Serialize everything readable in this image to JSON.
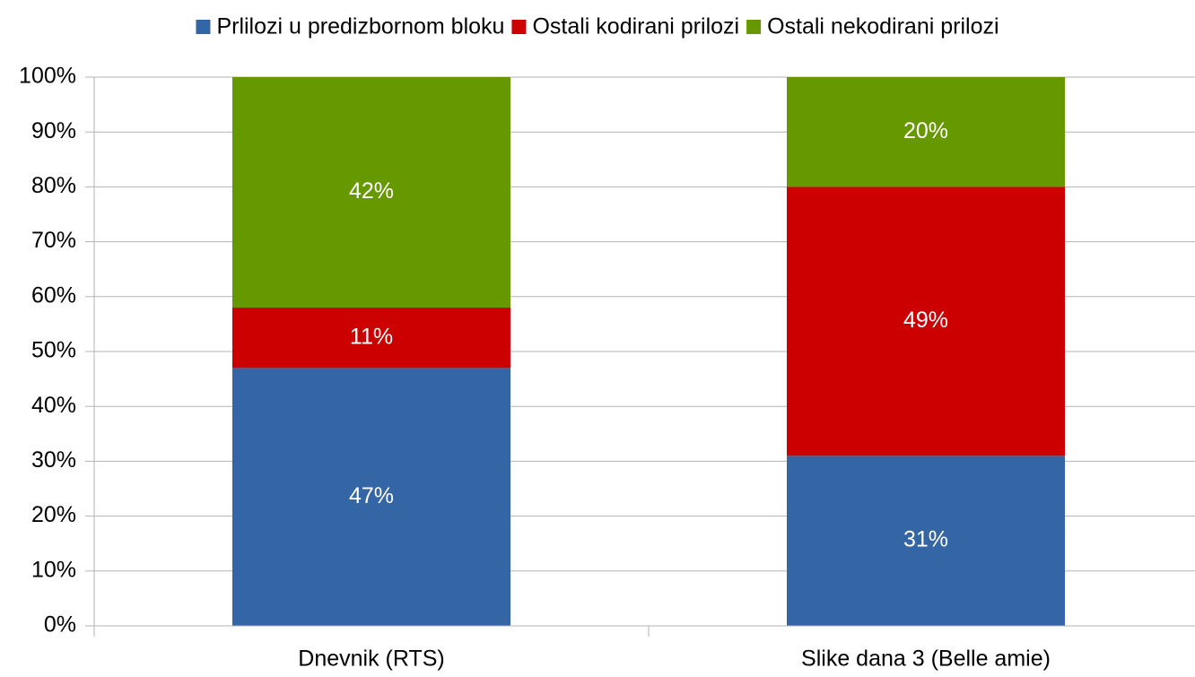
{
  "chart_data": {
    "type": "stacked_bar",
    "categories": [
      "Dnevnik (RTS)",
      "Slike dana 3 (Belle amie)"
    ],
    "series": [
      {
        "name": "Prlilozi u predizbornom bloku",
        "color": "#3465a4",
        "values": [
          47,
          31
        ],
        "value_labels": [
          "47%",
          "31%"
        ]
      },
      {
        "name": "Ostali kodirani prilozi",
        "color": "#cc0000",
        "values": [
          11,
          49
        ],
        "value_labels": [
          "11%",
          "49%"
        ]
      },
      {
        "name": "Ostali nekodirani prilozi",
        "color": "#669900",
        "values": [
          42,
          20
        ],
        "value_labels": [
          "42%",
          "20%"
        ]
      }
    ],
    "ylim": [
      0,
      100
    ],
    "yticks": [
      {
        "value": 0,
        "label": "0%"
      },
      {
        "value": 10,
        "label": "10%"
      },
      {
        "value": 20,
        "label": "20%"
      },
      {
        "value": 30,
        "label": "30%"
      },
      {
        "value": 40,
        "label": "40%"
      },
      {
        "value": 50,
        "label": "50%"
      },
      {
        "value": 60,
        "label": "60%"
      },
      {
        "value": 70,
        "label": "70%"
      },
      {
        "value": 80,
        "label": "80%"
      },
      {
        "value": 90,
        "label": "90%"
      },
      {
        "value": 100,
        "label": "100%"
      }
    ],
    "grid": true,
    "legend": "top"
  }
}
